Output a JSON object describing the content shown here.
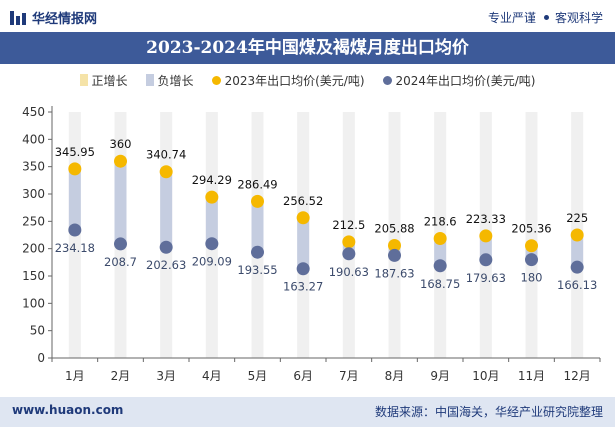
{
  "header": {
    "brand": "华经情报网",
    "tagline_left": "专业严谨",
    "tagline_right": "客观科学"
  },
  "colors": {
    "brand_blue": "#1f3a7a",
    "title_band": "#3d5a99",
    "positive_bar": "#f5e3a8",
    "negative_bar": "#c5cde0",
    "series_2023": "#f5b800",
    "series_2024": "#5f6e9a",
    "column_bg": "#f0f0f0",
    "footer_bg": "#dfe6f2"
  },
  "chart_data": {
    "type": "line",
    "title": "2023-2024年中国煤及褐煤月度出口均价",
    "categories": [
      "1月",
      "2月",
      "3月",
      "4月",
      "5月",
      "6月",
      "7月",
      "8月",
      "9月",
      "10月",
      "11月",
      "12月"
    ],
    "series": [
      {
        "name": "2023年出口均价(美元/吨)",
        "values": [
          345.95,
          360,
          340.74,
          294.29,
          286.49,
          256.52,
          212.5,
          205.88,
          218.6,
          223.33,
          205.36,
          225
        ]
      },
      {
        "name": "2024年出口均价(美元/吨)",
        "values": [
          234.18,
          208.7,
          202.63,
          209.09,
          193.55,
          163.27,
          190.63,
          187.63,
          168.75,
          179.63,
          180,
          166.13
        ]
      }
    ],
    "bar_series": [
      {
        "name": "正增长"
      },
      {
        "name": "负增长"
      }
    ],
    "data_labels_2023": [
      "345.95",
      "360",
      "340.74",
      "294.29",
      "286.49",
      "256.52",
      "212.5",
      "205.88",
      "218.6",
      "223.33",
      "205.36",
      "225"
    ],
    "data_labels_2024": [
      "234.18",
      "208.7",
      "202.63",
      "209.09",
      "193.55",
      "163.27",
      "190.63",
      "187.63",
      "168.75",
      "179.63",
      "180",
      "166.13"
    ],
    "y_ticks": [
      "0",
      "50",
      "100",
      "150",
      "200",
      "250",
      "300",
      "350",
      "400",
      "450"
    ],
    "ylim": [
      0,
      450
    ],
    "legend_position": "top",
    "grid": false
  },
  "footer": {
    "site": "www.huaon.com",
    "source": "数据来源：中国海关，华经产业研究院整理"
  }
}
